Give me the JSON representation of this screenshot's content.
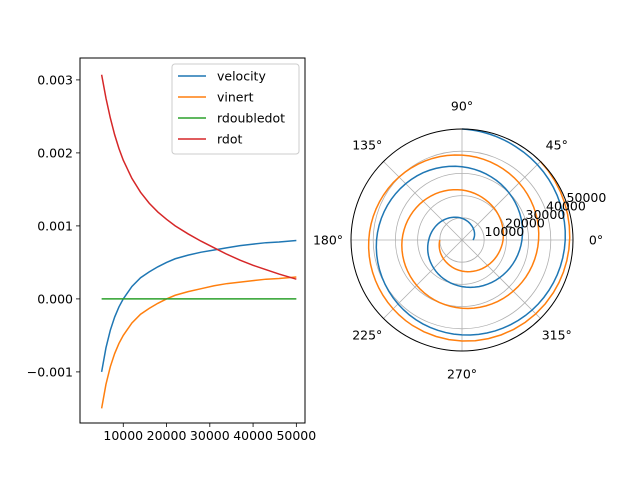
{
  "colors": {
    "blue": "#1f77b4",
    "orange": "#ff7f0e",
    "green": "#2ca02c",
    "red": "#d62728",
    "grid": "#b0b0b0",
    "axis": "#000000"
  },
  "chart_data": [
    {
      "type": "line",
      "title": "",
      "xlabel": "",
      "ylabel": "",
      "xlim": [
        0,
        52000
      ],
      "ylim": [
        -0.0017,
        0.0033
      ],
      "xticks": [
        10000,
        20000,
        30000,
        40000,
        50000
      ],
      "xtick_labels": [
        "10000",
        "20000",
        "30000",
        "40000",
        "50000"
      ],
      "yticks": [
        -0.001,
        0.0,
        0.001,
        0.002,
        0.003
      ],
      "ytick_labels": [
        "−0.001",
        "0.000",
        "0.001",
        "0.002",
        "0.003"
      ],
      "grid": false,
      "legend_position": "upper-right",
      "x": [
        5000,
        6000,
        7000,
        8000,
        9000,
        10000,
        12000,
        14000,
        16000,
        18000,
        20000,
        22000,
        25000,
        28000,
        31000,
        34000,
        37000,
        40000,
        43000,
        46000,
        50000
      ],
      "series": [
        {
          "name": "velocity",
          "color_key": "blue",
          "values": [
            -0.001,
            -0.00067,
            -0.00043,
            -0.00025,
            -0.00011,
            0.0,
            0.00017,
            0.00029,
            0.00037,
            0.00044,
            0.0005,
            0.00055,
            0.0006,
            0.00064,
            0.00067,
            0.0007,
            0.00073,
            0.00075,
            0.00077,
            0.00078,
            0.0008
          ]
        },
        {
          "name": "vinert",
          "color_key": "orange",
          "values": [
            -0.0015,
            -0.00117,
            -0.00093,
            -0.00075,
            -0.00061,
            -0.0005,
            -0.00033,
            -0.00021,
            -0.00013,
            -6e-05,
            0.0,
            5e-05,
            0.0001,
            0.00014,
            0.00018,
            0.00021,
            0.00023,
            0.00025,
            0.00027,
            0.00028,
            0.0003
          ]
        },
        {
          "name": "rdoubledot",
          "color_key": "green",
          "values": [
            0,
            0,
            0,
            0,
            0,
            0,
            0,
            0,
            0,
            0,
            0,
            0,
            0,
            0,
            0,
            0,
            0,
            0,
            0,
            0,
            0
          ]
        },
        {
          "name": "rdot",
          "color_key": "red",
          "values": [
            0.00307,
            0.00275,
            0.00248,
            0.00225,
            0.00206,
            0.0019,
            0.00165,
            0.00146,
            0.00131,
            0.00119,
            0.00109,
            0.001,
            0.00089,
            0.00079,
            0.0007,
            0.00061,
            0.00053,
            0.00046,
            0.0004,
            0.00034,
            0.00027
          ]
        }
      ]
    },
    {
      "type": "line",
      "projection": "polar",
      "title": "",
      "rmax": 50000,
      "rticks": [
        10000,
        20000,
        30000,
        40000,
        50000
      ],
      "rtick_labels": [
        "10000",
        "20000",
        "30000",
        "40000",
        "50000"
      ],
      "rlabel_angle_deg": 22.5,
      "theta_ticks_deg": [
        0,
        45,
        90,
        135,
        180,
        225,
        270,
        315
      ],
      "theta_tick_labels": [
        "0°",
        "45°",
        "90°",
        "135°",
        "180°",
        "225°",
        "270°",
        "315°"
      ],
      "grid": true,
      "series": [
        {
          "name": "",
          "color_key": "blue",
          "theta_deg": [
            0,
            60,
            120,
            180,
            240,
            300,
            360,
            420,
            480,
            540,
            600,
            660,
            720,
            780,
            810
          ],
          "r": [
            5000,
            8000,
            11500,
            15000,
            19000,
            23000,
            27000,
            31000,
            35000,
            38500,
            41500,
            44000,
            46500,
            48500,
            50000
          ]
        },
        {
          "name": "",
          "color_key": "orange",
          "theta_deg": [
            180,
            240,
            300,
            360,
            420,
            480,
            540,
            600,
            660,
            720,
            780,
            840,
            900,
            960,
            1050,
            1125
          ],
          "r": [
            10000,
            12500,
            15500,
            18500,
            21000,
            24000,
            27000,
            29500,
            32000,
            34500,
            37000,
            39500,
            42000,
            44500,
            47500,
            50000
          ]
        }
      ]
    }
  ]
}
